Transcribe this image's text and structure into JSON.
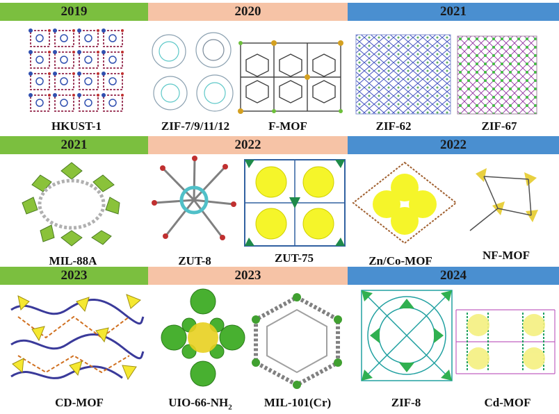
{
  "rows": [
    {
      "years": [
        "2019",
        "2020",
        "2021"
      ],
      "mofs": [
        "HKUST-1",
        "ZIF-7/9/11/12",
        "F-MOF",
        "ZIF-62",
        "ZIF-67"
      ]
    },
    {
      "years": [
        "2021",
        "2022",
        "2022"
      ],
      "mofs": [
        "MIL-88A",
        "ZUT-8",
        "ZUT-75",
        "Zn/Co-MOF",
        "NF-MOF"
      ]
    },
    {
      "years": [
        "2023",
        "2023",
        "2024"
      ],
      "mofs": [
        "CD-MOF",
        "UIO-66-NH",
        "MIL-101(Cr)",
        "ZIF-8",
        "Cd-MOF"
      ],
      "uio_subscript": "2"
    }
  ],
  "colors": {
    "band_green": "#7bbf3f",
    "band_peach": "#f6c3a6",
    "band_blue": "#4a8fd0"
  }
}
